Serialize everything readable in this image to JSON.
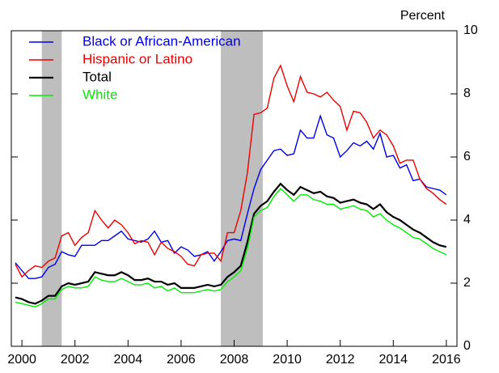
{
  "chart_data": {
    "type": "line",
    "y_axis_label": "Percent",
    "x": [
      1999.75,
      2000,
      2000.25,
      2000.5,
      2000.75,
      2001,
      2001.25,
      2001.5,
      2001.75,
      2002,
      2002.25,
      2002.5,
      2002.75,
      2003,
      2003.25,
      2003.5,
      2003.75,
      2004,
      2004.25,
      2004.5,
      2004.75,
      2005,
      2005.25,
      2005.5,
      2005.75,
      2006,
      2006.25,
      2006.5,
      2006.75,
      2007,
      2007.25,
      2007.5,
      2007.75,
      2008,
      2008.25,
      2008.5,
      2008.75,
      2009,
      2009.25,
      2009.5,
      2009.75,
      2010,
      2010.25,
      2010.5,
      2010.75,
      2011,
      2011.25,
      2011.5,
      2011.75,
      2012,
      2012.25,
      2012.5,
      2012.75,
      2013,
      2013.25,
      2013.5,
      2013.75,
      2014,
      2014.25,
      2014.5,
      2014.75,
      2015,
      2015.25,
      2015.5,
      2015.75,
      2016
    ],
    "series": [
      {
        "name": "Black or African-American",
        "color": "#0000ee",
        "values": [
          2.65,
          2.4,
          2.15,
          2.15,
          2.2,
          2.5,
          2.6,
          3.0,
          2.9,
          2.85,
          3.2,
          3.2,
          3.2,
          3.35,
          3.35,
          3.5,
          3.65,
          3.4,
          3.35,
          3.3,
          3.4,
          3.65,
          3.3,
          3.35,
          2.95,
          3.15,
          3.05,
          2.85,
          2.9,
          3.0,
          2.7,
          3.0,
          3.35,
          3.4,
          3.35,
          4.2,
          5.0,
          5.6,
          5.9,
          6.2,
          6.25,
          6.05,
          6.1,
          6.85,
          6.6,
          6.6,
          7.3,
          6.7,
          6.6,
          6.0,
          6.2,
          6.45,
          6.35,
          6.5,
          6.25,
          6.75,
          6.0,
          6.05,
          5.65,
          5.75,
          5.25,
          5.3,
          5.05,
          5.0,
          4.95,
          4.8
        ]
      },
      {
        "name": "Hispanic or Latino",
        "color": "#ee0000",
        "values": [
          2.6,
          2.2,
          2.4,
          2.55,
          2.5,
          2.7,
          2.8,
          3.5,
          3.6,
          3.2,
          3.45,
          3.6,
          4.3,
          4.0,
          3.75,
          4.0,
          3.85,
          3.6,
          3.25,
          3.35,
          3.3,
          2.9,
          3.3,
          3.1,
          3.0,
          2.85,
          2.6,
          2.55,
          2.9,
          2.95,
          2.95,
          2.7,
          3.6,
          3.6,
          4.3,
          5.5,
          7.35,
          7.4,
          7.55,
          8.5,
          8.9,
          8.25,
          7.75,
          8.55,
          8.05,
          8.0,
          7.9,
          8.05,
          7.8,
          7.6,
          6.85,
          7.45,
          7.4,
          7.1,
          6.6,
          6.85,
          6.7,
          6.35,
          5.8,
          5.9,
          5.9,
          5.3,
          5.0,
          4.85,
          4.65,
          4.5
        ]
      },
      {
        "name": "Total",
        "color": "#000000",
        "values": [
          1.55,
          1.5,
          1.4,
          1.35,
          1.45,
          1.6,
          1.6,
          1.9,
          2.0,
          1.95,
          2.0,
          2.05,
          2.35,
          2.3,
          2.25,
          2.25,
          2.35,
          2.25,
          2.1,
          2.1,
          2.15,
          2.05,
          2.05,
          1.95,
          2.0,
          1.85,
          1.85,
          1.85,
          1.9,
          1.95,
          1.9,
          1.95,
          2.2,
          2.35,
          2.55,
          3.3,
          4.2,
          4.45,
          4.6,
          4.9,
          5.15,
          4.95,
          4.8,
          5.05,
          4.95,
          4.85,
          4.9,
          4.75,
          4.7,
          4.55,
          4.6,
          4.65,
          4.55,
          4.5,
          4.35,
          4.5,
          4.25,
          4.1,
          4.0,
          3.85,
          3.7,
          3.6,
          3.45,
          3.3,
          3.2,
          3.15
        ]
      },
      {
        "name": "White",
        "color": "#00ee00",
        "values": [
          1.4,
          1.35,
          1.3,
          1.25,
          1.35,
          1.5,
          1.5,
          1.8,
          1.9,
          1.85,
          1.85,
          1.9,
          2.2,
          2.1,
          2.05,
          2.05,
          2.15,
          2.05,
          1.95,
          1.95,
          2.0,
          1.85,
          1.9,
          1.75,
          1.85,
          1.7,
          1.7,
          1.7,
          1.75,
          1.8,
          1.75,
          1.8,
          2.05,
          2.2,
          2.4,
          3.1,
          4.1,
          4.3,
          4.4,
          4.75,
          5.0,
          4.8,
          4.6,
          4.8,
          4.8,
          4.65,
          4.6,
          4.5,
          4.5,
          4.35,
          4.4,
          4.45,
          4.35,
          4.3,
          4.1,
          4.2,
          4.0,
          3.85,
          3.75,
          3.6,
          3.45,
          3.4,
          3.25,
          3.1,
          3.0,
          2.9
        ]
      }
    ],
    "shaded_periods": [
      [
        2000.75,
        2001.5
      ],
      [
        2007.5,
        2009.08
      ]
    ],
    "shade_color": "#bebebe",
    "xlim": [
      1999.6,
      2016.4
    ],
    "xticks": [
      2000,
      2002,
      2004,
      2006,
      2008,
      2010,
      2012,
      2014,
      2016
    ],
    "ylim": [
      0,
      10
    ],
    "yticks": [
      0,
      2,
      4,
      6,
      8,
      10
    ],
    "legend": "upper left"
  }
}
